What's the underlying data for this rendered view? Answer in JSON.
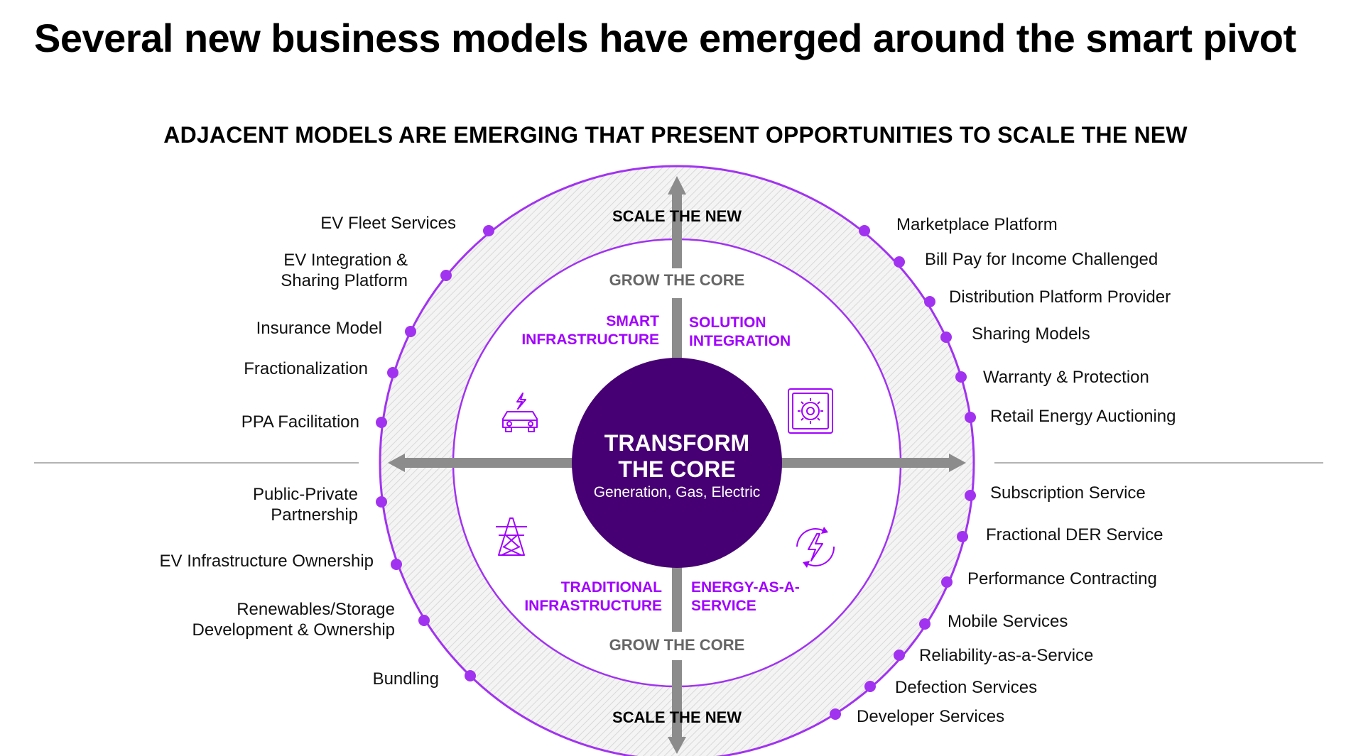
{
  "title": "Several new business models have emerged around the smart pivot",
  "subtitle": "ADJACENT MODELS ARE EMERGING THAT PRESENT OPPORTUNITIES TO SCALE THE NEW",
  "diagram": {
    "center": {
      "line1": "TRANSFORM",
      "line2": "THE CORE",
      "caption": "Generation, Gas, Electric"
    },
    "scale_top": "SCALE THE NEW",
    "scale_bottom": "SCALE THE NEW",
    "grow_top": "GROW THE CORE",
    "grow_bottom": "GROW THE CORE",
    "quadrants": {
      "top_left": [
        "SMART",
        "INFRASTRUCTURE"
      ],
      "top_right": [
        "SOLUTION",
        "INTEGRATION"
      ],
      "bottom_left": [
        "TRADITIONAL",
        "INFRASTRUCTURE"
      ],
      "bottom_right": [
        "ENERGY-AS-A-",
        "SERVICE"
      ]
    },
    "icons": [
      "ev-car-icon",
      "gear-circuit-icon",
      "power-tower-icon",
      "energy-cycle-icon"
    ],
    "colors": {
      "purple": "#A100FF",
      "dark_purple": "#460073",
      "gray": "#8C8C8C",
      "dot": "#A133F0"
    }
  },
  "left_items": [
    "EV Fleet Services",
    "EV Integration &\nSharing Platform",
    "Insurance Model",
    "Fractionalization",
    "PPA Facilitation",
    "Public-Private\nPartnership",
    "EV Infrastructure Ownership",
    "Renewables/Storage\nDevelopment & Ownership",
    "Bundling"
  ],
  "right_items": [
    "Marketplace Platform",
    "Bill Pay for Income Challenged",
    "Distribution Platform Provider",
    "Sharing Models",
    "Warranty & Protection",
    "Retail Energy Auctioning",
    "Subscription Service",
    "Fractional DER Service",
    "Performance Contracting",
    "Mobile Services",
    "Reliability-as-a-Service",
    "Defection Services",
    "Developer Services"
  ]
}
